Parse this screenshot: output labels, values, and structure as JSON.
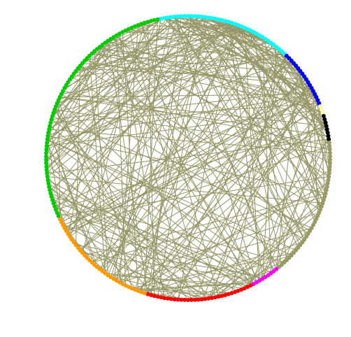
{
  "diagram": {
    "type": "circular network graph",
    "edge_color": "#959566",
    "background": "#ffffff",
    "groups": [
      {
        "color": "#00ffff",
        "count": 40
      },
      {
        "color": "#0000ff",
        "count": 18
      },
      {
        "color": "#ffffb0",
        "count": 3
      },
      {
        "color": "#000000",
        "count": 8
      },
      {
        "color": "#9a9a66",
        "count": 42
      },
      {
        "color": "#ff00ff",
        "count": 9
      },
      {
        "color": "#ff0000",
        "count": 32
      },
      {
        "color": "#ff9900",
        "count": 35
      },
      {
        "color": "#00cc00",
        "count": 75
      }
    ],
    "edge_count": 340
  }
}
